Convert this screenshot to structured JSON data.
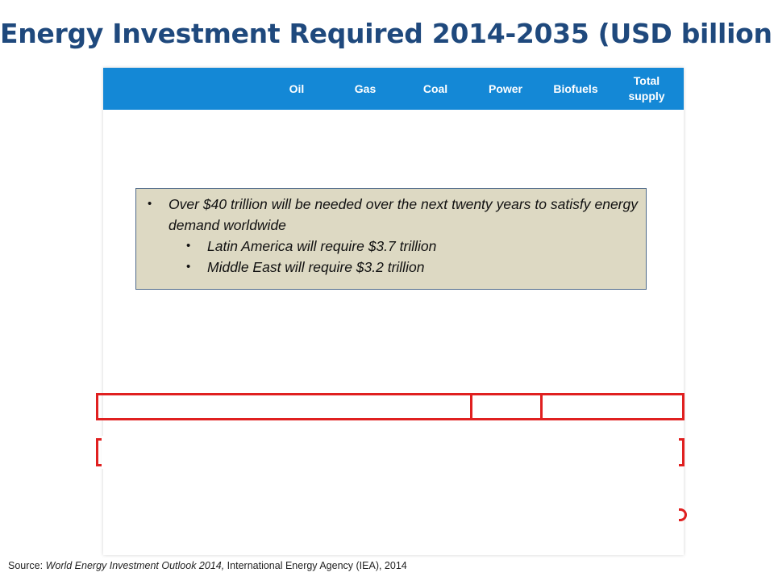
{
  "title": "Energy Investment Required 2014-2035 (USD billion)",
  "table": {
    "header_color": "#1488d6",
    "columns": [
      "Oil",
      "Gas",
      "Coal",
      "Power",
      "Biofuels",
      "Total supply"
    ]
  },
  "callout": {
    "bullets": [
      {
        "text": "Over $40 trillion will be needed over the next twenty years to satisfy energy demand worldwide",
        "level": 1
      },
      {
        "text": "Latin America will require $3.7 trillion",
        "level": 2
      },
      {
        "text": "Middle East will require $3.2 trillion",
        "level": 2
      }
    ],
    "bullet_glyph": "•",
    "background": "#ddd9c3"
  },
  "highlight_color": "#e02020",
  "source": {
    "label": "Source: ",
    "publication": "World Energy Investment Outlook 2014,",
    "publisher": " International Energy Agency (IEA), 2014"
  }
}
